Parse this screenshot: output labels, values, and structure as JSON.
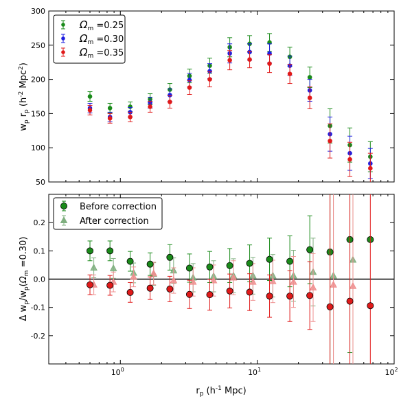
{
  "chart_data": [
    {
      "type": "scatter",
      "panel": "top",
      "xscale": "log",
      "xlim": [
        0.3,
        100
      ],
      "ylim": [
        50,
        300
      ],
      "ylabel": "w_p r_p (h^-2 Mpc^2)",
      "yticks": [
        "50",
        "100",
        "150",
        "200",
        "250",
        "300"
      ],
      "legend_position": "top-left",
      "x": [
        0.6,
        0.84,
        1.18,
        1.65,
        2.3,
        3.2,
        4.5,
        6.3,
        8.8,
        12.3,
        17.3,
        24.2,
        34,
        47.5,
        67
      ],
      "series": [
        {
          "name": "Ωm=0.25",
          "legend_symbol": "Ω",
          "legend_sub": "m",
          "legend_value": "=0.25",
          "color": "#1a8a1a",
          "values": [
            175,
            158,
            160,
            171,
            185,
            205,
            220,
            247,
            252,
            254,
            233,
            203,
            132,
            104,
            87
          ],
          "errors": [
            7,
            7,
            7,
            8,
            9,
            10,
            11,
            14,
            12,
            13,
            14,
            15,
            25,
            25,
            22
          ]
        },
        {
          "name": "Ωm=0.30",
          "legend_symbol": "Ω",
          "legend_sub": "m",
          "legend_value": "=0.30",
          "color": "#1f1fe0",
          "values": [
            158,
            145,
            152,
            166,
            177,
            199,
            212,
            238,
            240,
            238,
            220,
            184,
            120,
            92,
            77
          ],
          "errors": [
            7,
            7,
            7,
            8,
            9,
            10,
            11,
            14,
            12,
            14,
            14,
            16,
            25,
            25,
            22
          ]
        },
        {
          "name": "Ωm=0.35",
          "legend_symbol": "Ω",
          "legend_sub": "m",
          "legend_value": "=0.35",
          "color": "#e01a1a",
          "values": [
            155,
            143,
            145,
            160,
            167,
            188,
            200,
            228,
            229,
            223,
            208,
            173,
            110,
            83,
            70
          ],
          "errors": [
            7,
            7,
            7,
            8,
            9,
            10,
            11,
            14,
            12,
            13,
            14,
            16,
            25,
            25,
            22
          ]
        }
      ]
    },
    {
      "type": "scatter",
      "panel": "bottom",
      "xscale": "log",
      "xlim": [
        0.3,
        100
      ],
      "ylim": [
        -0.3,
        0.3
      ],
      "ylabel": "Δ w_p / w_p (Ωm=0.30)",
      "xlabel": "r_p (h^-1 Mpc)",
      "yticks": [
        "-0.2",
        "-0.1",
        "0.0",
        "0.1",
        "0.2"
      ],
      "xticks": [
        "10",
        "10",
        "10"
      ],
      "xtick_exponents": [
        "0",
        "1",
        "2"
      ],
      "zero_line": 0.0,
      "legend_position": "top-left",
      "legend": [
        "Before correction",
        "After correction"
      ],
      "x": [
        0.6,
        0.84,
        1.18,
        1.65,
        2.3,
        3.2,
        4.5,
        6.3,
        8.8,
        12.3,
        17.3,
        24.2,
        34,
        47.5,
        67
      ],
      "x_triangle": [
        0.64,
        0.89,
        1.25,
        1.75,
        2.45,
        3.4,
        4.8,
        6.7,
        9.3,
        13.0,
        18.4,
        25.6,
        36,
        50
      ],
      "series": [
        {
          "name": "Before correction, Ωm=0.25",
          "marker": "circle",
          "color": "#1a8a1a",
          "values": [
            0.1,
            0.1,
            0.063,
            0.053,
            0.077,
            0.039,
            0.043,
            0.048,
            0.056,
            0.07,
            0.063,
            0.104,
            0.096,
            0.14,
            0.14
          ],
          "errors": [
            0.035,
            0.035,
            0.035,
            0.04,
            0.045,
            0.05,
            0.055,
            0.06,
            0.065,
            0.075,
            0.09,
            0.12,
            0.4,
            0.4,
            0
          ]
        },
        {
          "name": "Before correction, Ωm=0.35",
          "marker": "circle",
          "color": "#e01a1a",
          "values": [
            -0.02,
            -0.022,
            -0.047,
            -0.032,
            -0.035,
            -0.054,
            -0.055,
            -0.042,
            -0.046,
            -0.06,
            -0.06,
            -0.058,
            -0.098,
            -0.078,
            -0.094
          ],
          "errors": [
            0.035,
            0.035,
            0.035,
            0.04,
            0.045,
            0.05,
            0.055,
            0.06,
            0.065,
            0.075,
            0.09,
            0.12,
            0.4,
            0.4,
            0.4
          ]
        },
        {
          "name": "After correction, Ωm=0.25",
          "marker": "triangle",
          "color": "#7faf7f",
          "values": [
            0.04,
            0.038,
            0.022,
            0.018,
            0.03,
            0.005,
            0.01,
            0.012,
            0.012,
            0.012,
            0.012,
            0.025,
            0.012,
            0.068
          ],
          "errors": [
            0.035,
            0.035,
            0.035,
            0.04,
            0.045,
            0.05,
            0.055,
            0.06,
            0.065,
            0.075,
            0.09,
            0.12,
            0.4,
            0.4
          ]
        },
        {
          "name": "After correction, Ωm=0.35",
          "marker": "triangle",
          "color": "#ef8f8f",
          "values": [
            -0.02,
            -0.01,
            0.008,
            0.02,
            -0.005,
            -0.01,
            -0.005,
            0.005,
            -0.01,
            -0.008,
            -0.01,
            -0.03,
            -0.02,
            -0.025
          ],
          "errors": [
            0.035,
            0.035,
            0.035,
            0.04,
            0.045,
            0.05,
            0.055,
            0.06,
            0.065,
            0.075,
            0.09,
            0.12,
            0.4,
            0.4
          ]
        }
      ]
    }
  ]
}
